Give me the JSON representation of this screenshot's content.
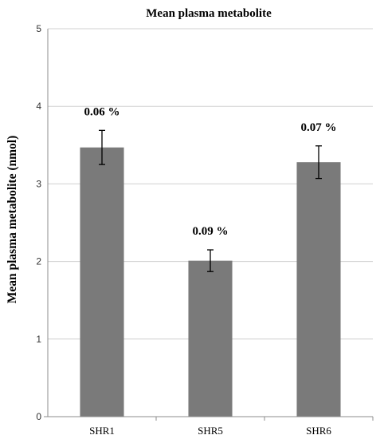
{
  "chart_data": {
    "type": "bar",
    "title": "Mean plasma metabolite",
    "xlabel": "",
    "ylabel": "Mean plasma metabolite (nmol)",
    "categories": [
      "SHR1",
      "SHR5",
      "SHR6"
    ],
    "values": [
      3.47,
      2.01,
      3.28
    ],
    "error": [
      0.22,
      0.14,
      0.21
    ],
    "data_labels": [
      "0.06 %",
      "0.09 %",
      "0.07 %"
    ],
    "ylim": [
      0,
      5
    ],
    "yticks": [
      "0",
      "1",
      "2",
      "3",
      "4",
      "5"
    ],
    "grid": true,
    "legend": "none",
    "colors": {
      "bar": "#7a7a7a",
      "grid": "#d0d0d0",
      "axis": "#8c8c8c",
      "error": "#000000"
    }
  }
}
